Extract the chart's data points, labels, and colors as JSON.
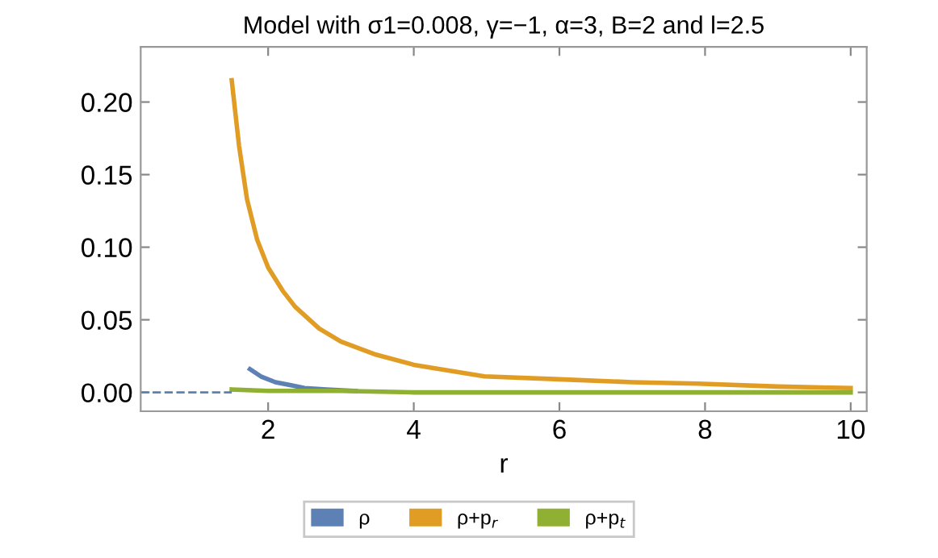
{
  "chart_data": {
    "type": "line",
    "title": "Model with σ1=0.008, γ=−1, α=3, B=2 and l=2.5",
    "xlabel": "r",
    "series": [
      {
        "name": "ρ",
        "color": "#5e81b5",
        "x": [
          1.75,
          1.9,
          2.1,
          2.3,
          2.5,
          2.8,
          3.2
        ],
        "values": [
          0.016,
          0.011,
          0.007,
          0.005,
          0.003,
          0.002,
          0.001
        ]
      },
      {
        "name": "ρ+p$_{r}$",
        "color": "#e19c24",
        "x": [
          1.5,
          1.6,
          1.71,
          1.85,
          2.0,
          2.2,
          2.37,
          2.7,
          3.0,
          3.48,
          4.0,
          4.97,
          6.0,
          7.0,
          7.9,
          9.0,
          10
        ],
        "values": [
          0.215,
          0.17,
          0.133,
          0.105,
          0.086,
          0.07,
          0.059,
          0.044,
          0.035,
          0.026,
          0.019,
          0.011,
          0.009,
          0.007,
          0.006,
          0.004,
          0.003
        ]
      },
      {
        "name": "ρ+p$_{t}$",
        "color": "#8fb032",
        "x": [
          1.5,
          2,
          3,
          4,
          6,
          8,
          10
        ],
        "values": [
          0.002,
          0.001,
          0.001,
          0,
          0,
          0,
          0
        ]
      },
      {
        "color": "#5e81b5",
        "line_style": "dashed",
        "x": [
          0.25,
          1.5
        ],
        "values": [
          0,
          0
        ]
      }
    ],
    "xlim": [
      0.25,
      10.22
    ],
    "ylim": [
      -0.013,
      0.238
    ],
    "xticks": [
      2,
      4,
      6,
      8,
      10
    ],
    "yticks": [
      {
        "value": 0,
        "label": "0.00"
      },
      {
        "value": 0.05,
        "label": "0.05"
      },
      {
        "value": 0.1,
        "label": "0.10"
      },
      {
        "value": 0.15,
        "label": "0.15"
      },
      {
        "value": 0.2,
        "label": "0.20"
      }
    ],
    "legend": "bottom",
    "grid": false
  }
}
